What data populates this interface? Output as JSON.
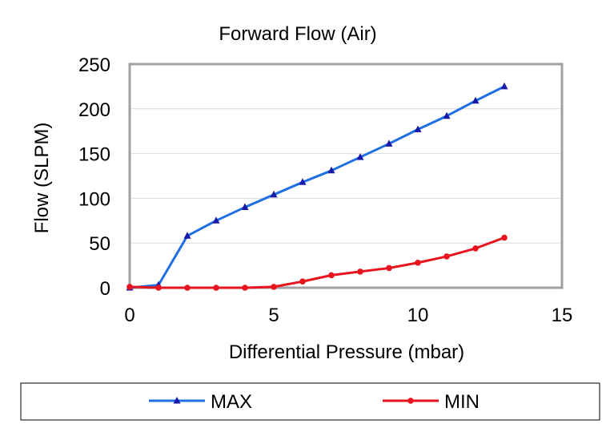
{
  "chart_data": {
    "type": "line",
    "title": "Forward Flow (Air)",
    "xlabel": "Differential Pressure (mbar)",
    "ylabel": "Flow (SLPM)",
    "xlim": [
      0,
      15
    ],
    "ylim": [
      0,
      250
    ],
    "xticks": [
      0,
      5,
      10,
      15
    ],
    "yticks": [
      0,
      50,
      100,
      150,
      200,
      250
    ],
    "grid": true,
    "legend_position": "bottom",
    "series": [
      {
        "name": "MAX",
        "color": "#1f6fe0",
        "marker": "triangle",
        "x": [
          0,
          1,
          2,
          3,
          4,
          5,
          6,
          7,
          8,
          9,
          10,
          11,
          12,
          13
        ],
        "y": [
          0,
          3,
          58,
          75,
          90,
          104,
          118,
          131,
          146,
          161,
          177,
          192,
          209,
          225
        ]
      },
      {
        "name": "MIN",
        "color": "#e8141e",
        "marker": "circle",
        "x": [
          0,
          1,
          2,
          3,
          4,
          5,
          6,
          7,
          8,
          9,
          10,
          11,
          12,
          13
        ],
        "y": [
          1,
          0,
          0,
          0,
          0,
          1,
          7,
          14,
          18,
          22,
          28,
          35,
          44,
          56
        ]
      }
    ]
  }
}
